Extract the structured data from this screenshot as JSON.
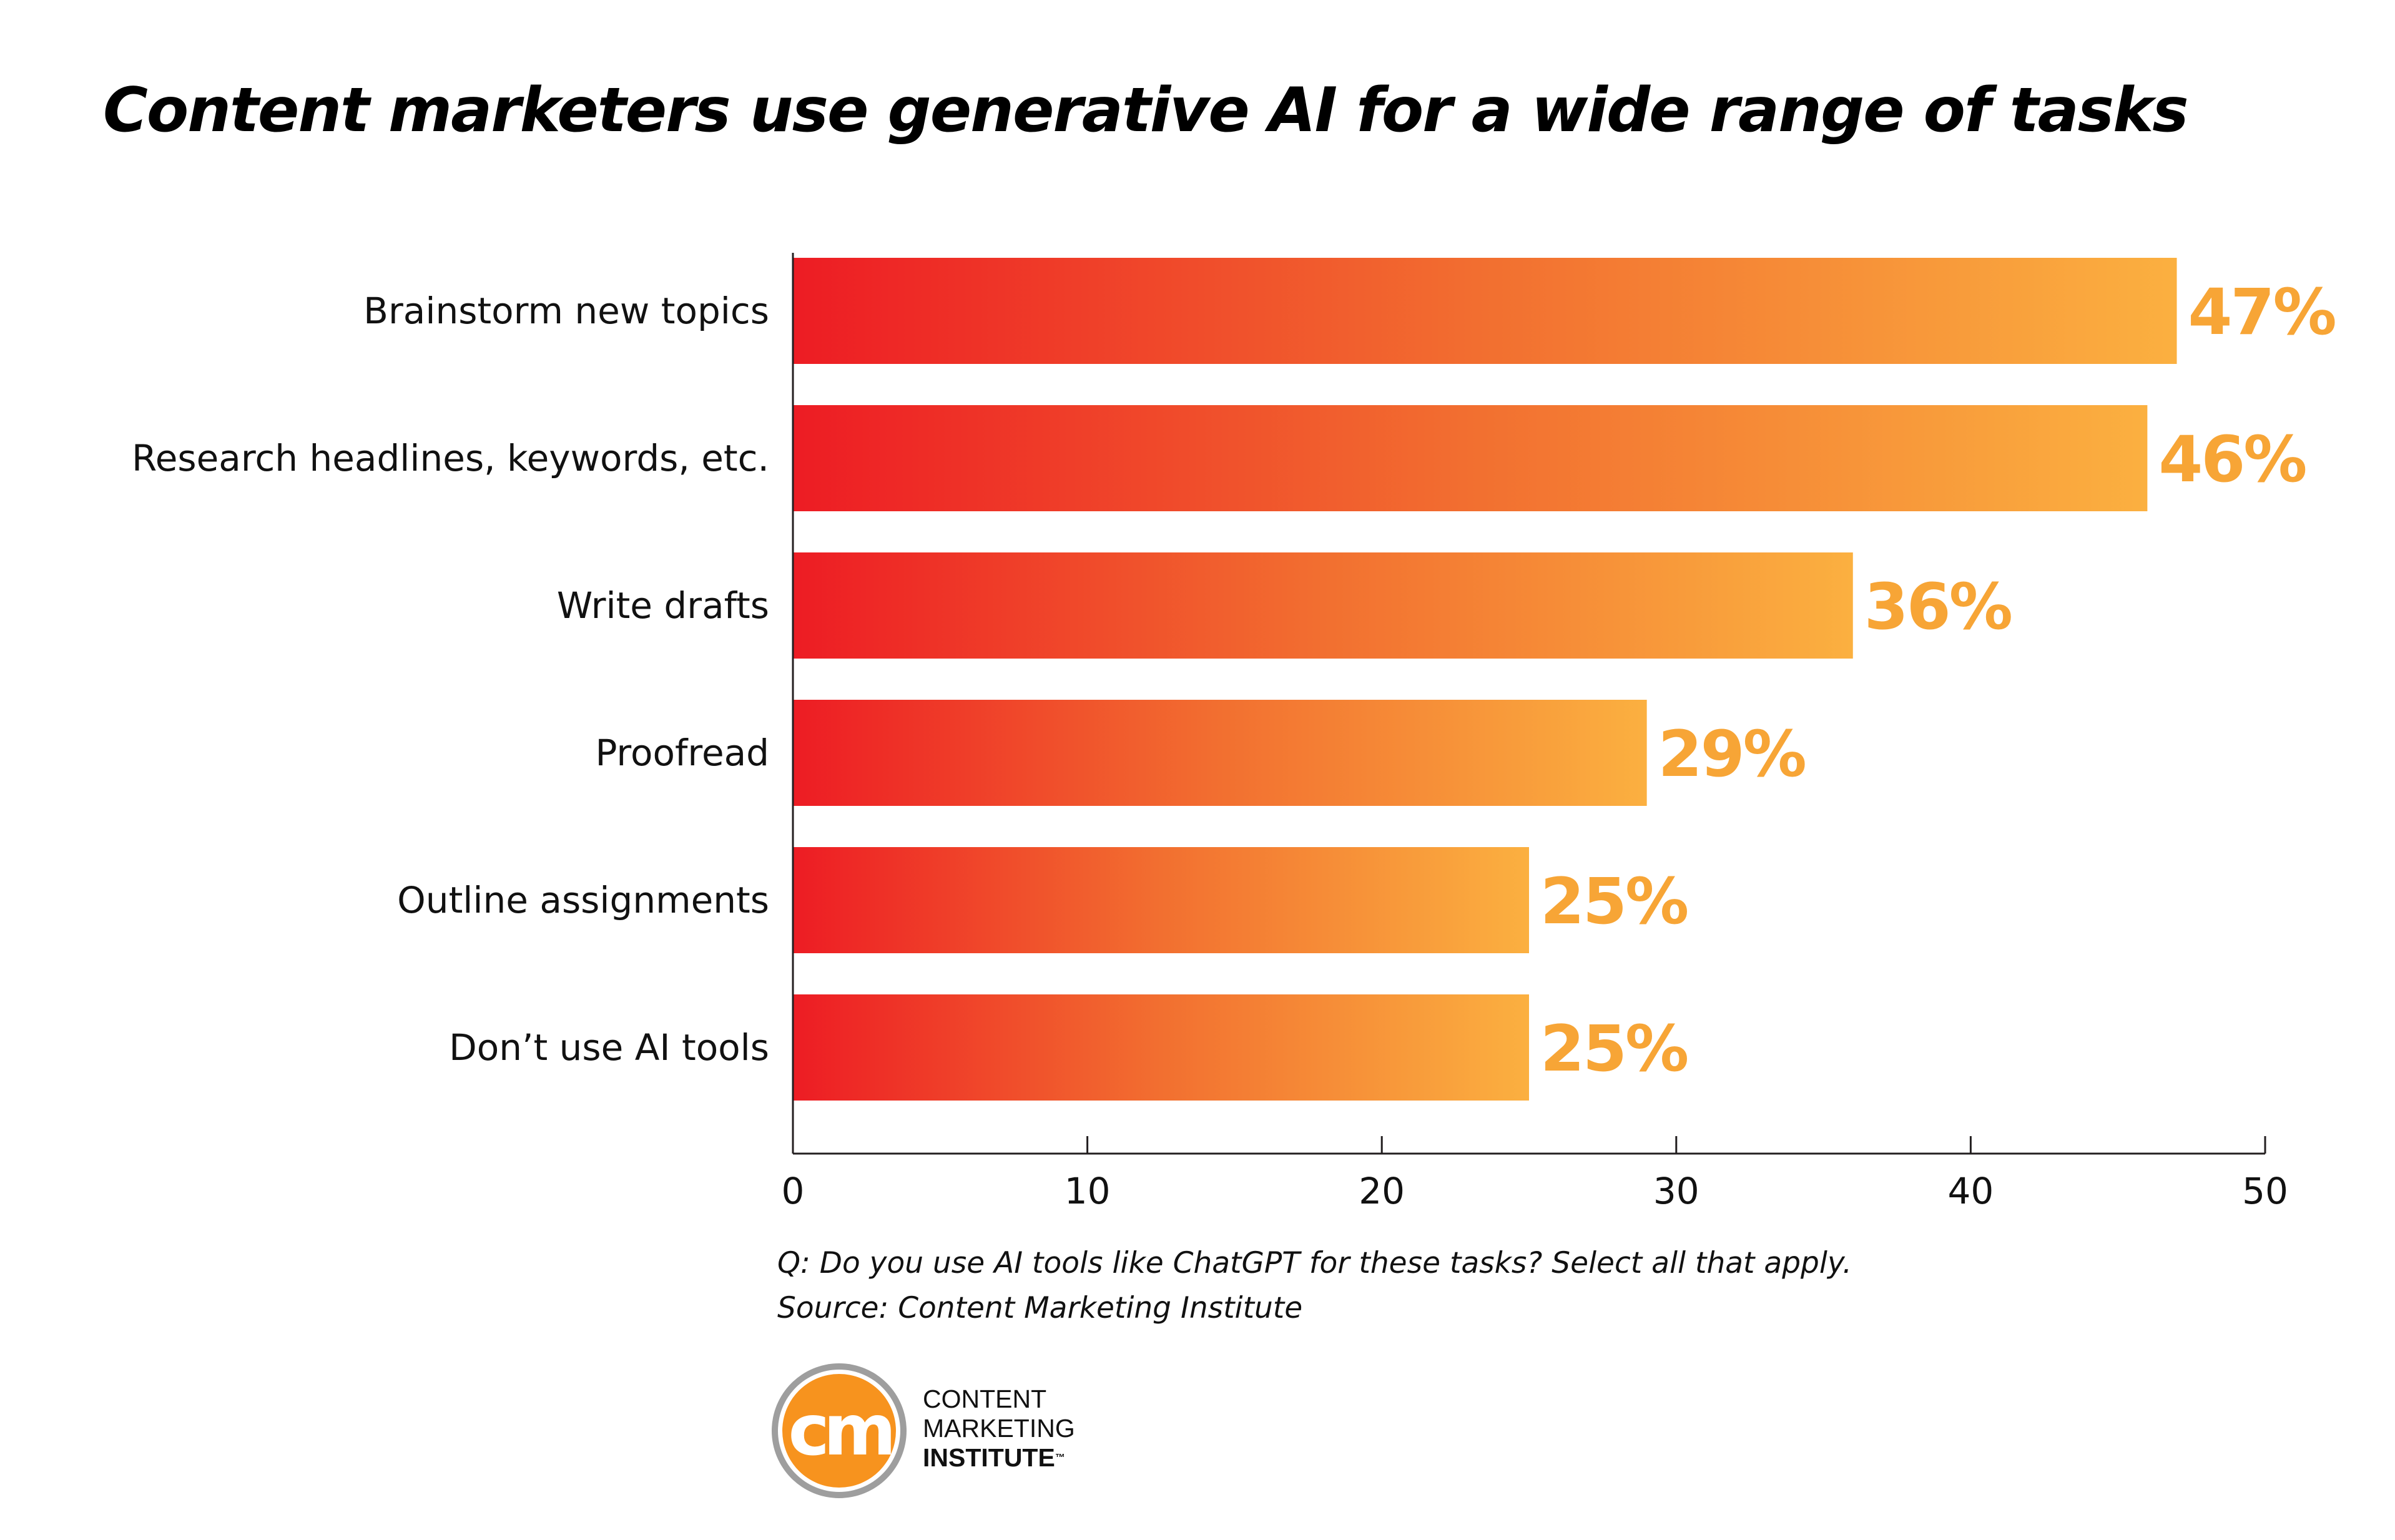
{
  "title": "Content marketers use generative AI for a wide range of tasks",
  "chart_data": {
    "type": "bar",
    "orientation": "horizontal",
    "categories": [
      "Brainstorm new topics",
      "Research headlines, keywords, etc.",
      "Write drafts",
      "Proofread",
      "Outline assignments",
      "Don’t use AI tools"
    ],
    "values": [
      47,
      46,
      36,
      29,
      25,
      25
    ],
    "value_labels": [
      "47%",
      "46%",
      "36%",
      "29%",
      "25%",
      "25%"
    ],
    "x_ticks": [
      "0",
      "10",
      "20",
      "30",
      "40",
      "50"
    ],
    "xlim": [
      0,
      50
    ],
    "xlabel": "",
    "ylabel": "",
    "grid": false,
    "legend": false,
    "colors": {
      "gradient_start": "#ED1C24",
      "gradient_mid": "#F26F30",
      "gradient_end": "#FBB040",
      "value_label": "#F7A536",
      "axis": "#231F20"
    }
  },
  "footnote": {
    "question": "Q: Do you use AI tools like ChatGPT for these tasks? Select all that apply.",
    "source": "Source: Content Marketing Institute"
  },
  "logo": {
    "monogram": "cm",
    "line1": "CONTENT",
    "line2": "MARKETING",
    "line3": "INSTITUTE",
    "trademark": "™",
    "circle_color": "#F7931E",
    "ring_color": "#9E9E9E"
  }
}
